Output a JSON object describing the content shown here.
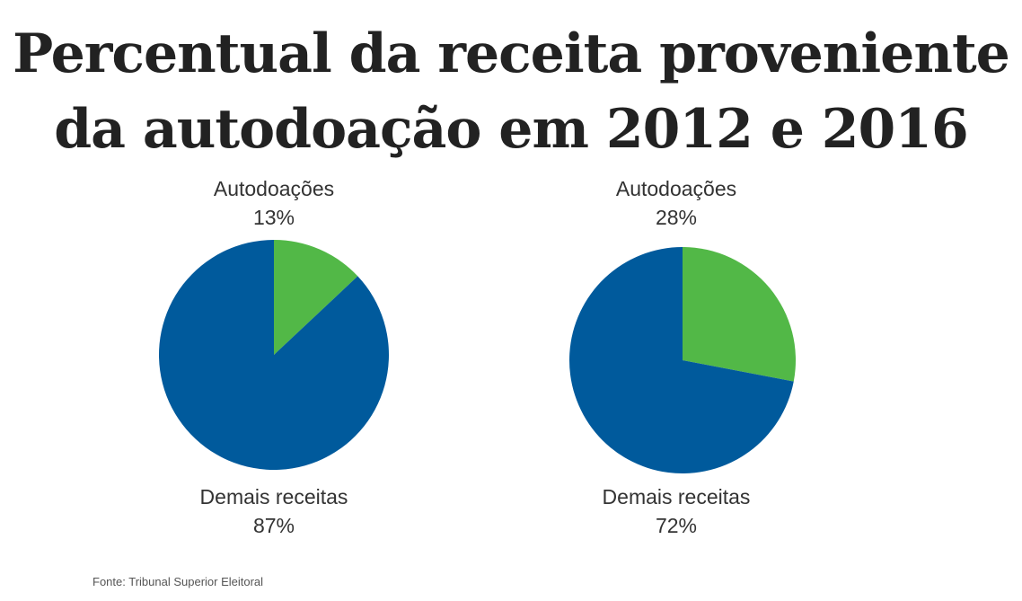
{
  "title_line1": "Percentual da receita proveniente",
  "title_line2": "da autodoação em 2012 e 2016",
  "source": "Fonte: Tribunal Superior Eleitoral",
  "colors": {
    "autodoacoes": "#52b847",
    "demais": "#005a9c"
  },
  "chart_data": [
    {
      "type": "pie",
      "slices": [
        {
          "label": "Autodoações",
          "value": 13,
          "value_label": "13%",
          "color": "#52b847"
        },
        {
          "label": "Demais receitas",
          "value": 87,
          "value_label": "87%",
          "color": "#005a9c"
        }
      ]
    },
    {
      "type": "pie",
      "slices": [
        {
          "label": "Autodoações",
          "value": 28,
          "value_label": "28%",
          "color": "#52b847"
        },
        {
          "label": "Demais receitas",
          "value": 72,
          "value_label": "72%",
          "color": "#005a9c"
        }
      ]
    }
  ]
}
